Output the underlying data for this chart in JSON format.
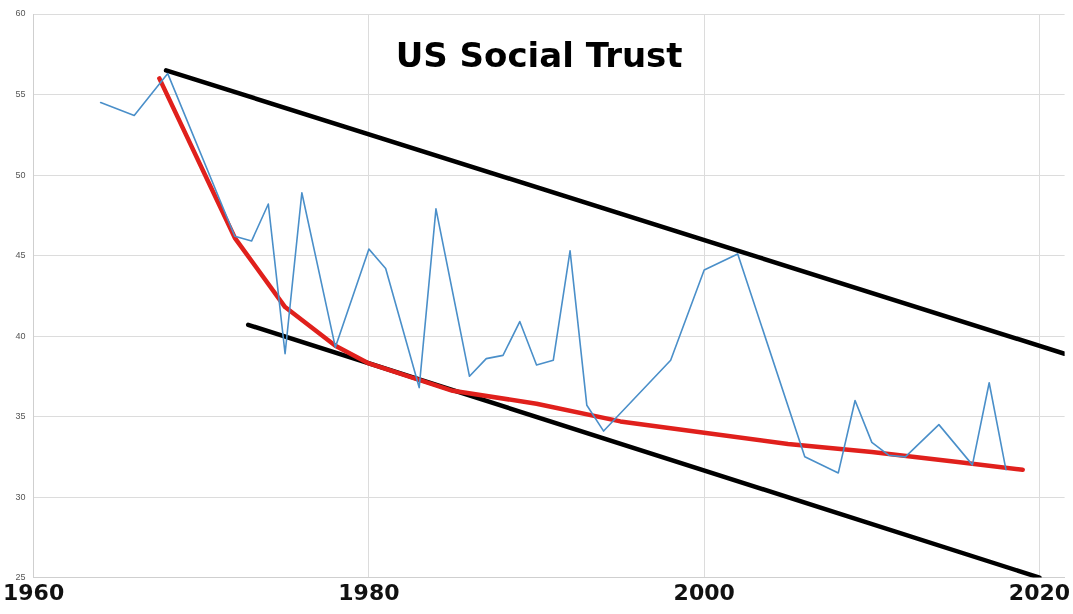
{
  "chart_data": {
    "type": "line",
    "title": "US Social Trust",
    "xlim": [
      1960,
      2021.5
    ],
    "xticks": [
      1960,
      1980,
      2000,
      2020
    ],
    "ylim": [
      25,
      60
    ],
    "yticks": [
      25,
      30,
      35,
      40,
      45,
      50,
      55,
      60
    ],
    "grid": true,
    "legend": false,
    "marker": "none",
    "line_style": "solid",
    "series": [
      {
        "color": "#4a8fc9",
        "x": [
          1964,
          1966,
          1968,
          1972,
          1973,
          1974,
          1975,
          1976,
          1978,
          1980,
          1981,
          1983,
          1984,
          1986,
          1987,
          1988,
          1989,
          1990,
          1991,
          1992,
          1993,
          1994,
          1998,
          2000,
          2002,
          2006,
          2008,
          2009,
          2010,
          2011,
          2012,
          2014,
          2016,
          2017,
          2018
        ],
        "values": [
          54.5,
          53.7,
          56.3,
          46.2,
          45.9,
          48.2,
          38.9,
          48.9,
          39.3,
          45.4,
          44.2,
          36.8,
          47.9,
          37.5,
          38.6,
          38.8,
          40.9,
          38.2,
          38.5,
          45.3,
          35.7,
          34.1,
          38.5,
          44.1,
          45.1,
          32.5,
          31.5,
          36.0,
          33.4,
          32.6,
          32.5,
          34.5,
          32.0,
          37.1,
          31.7
        ]
      },
      {
        "color": "#e0201c",
        "x": [
          1967.5,
          1972,
          1975,
          1978,
          1980,
          1985,
          1990,
          1995,
          2000,
          2005,
          2010,
          2015,
          2019
        ],
        "values": [
          56.0,
          46.1,
          41.8,
          39.4,
          38.3,
          36.6,
          35.8,
          34.7,
          34.0,
          33.3,
          32.8,
          32.2,
          31.7
        ]
      },
      {
        "color": "#000000",
        "x": [
          1967.9,
          2021.5
        ],
        "values": [
          56.5,
          38.9
        ]
      },
      {
        "color": "#000000",
        "x": [
          1972.8,
          2020
        ],
        "values": [
          40.7,
          25
        ]
      }
    ]
  }
}
